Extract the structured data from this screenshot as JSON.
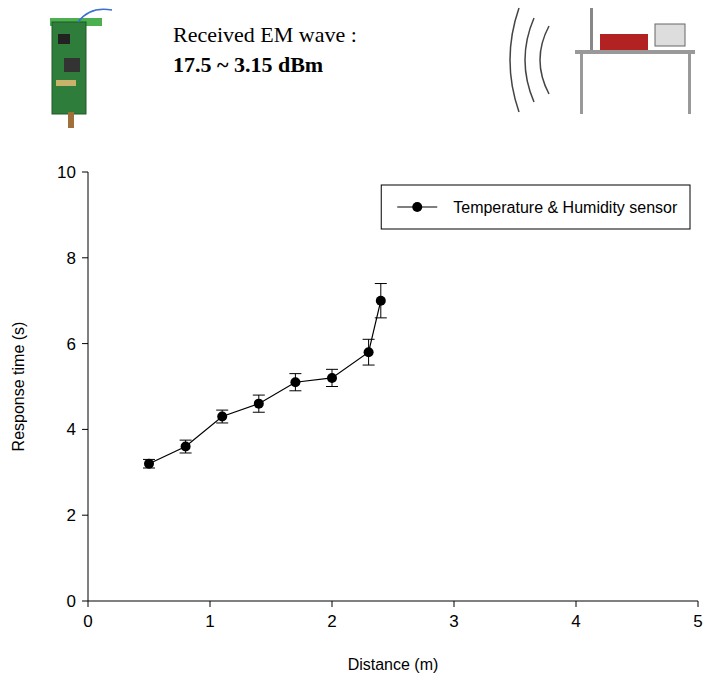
{
  "chart_data": {
    "type": "line",
    "title": "Received EM wave :",
    "subtitle": "17.5 ~ 3.15 dBm",
    "x_label": "Distance (m)",
    "y_label": "Response time (s)",
    "x": [
      0.5,
      0.8,
      1.1,
      1.4,
      1.7,
      2.0,
      2.3,
      2.4
    ],
    "series": [
      {
        "name": "Temperature & Humidity sensor",
        "color": "#000000",
        "marker": "circle",
        "line_style": "solid",
        "values": [
          3.2,
          3.6,
          4.3,
          4.6,
          5.1,
          5.2,
          5.8,
          7.0
        ],
        "errors": [
          0.1,
          0.15,
          0.15,
          0.2,
          0.2,
          0.2,
          0.3,
          0.4
        ]
      }
    ],
    "xlim": [
      0,
      5
    ],
    "xticks": [
      0,
      1,
      2,
      3,
      4,
      5
    ],
    "ylim": [
      0,
      10
    ],
    "yticks": [
      0,
      2,
      4,
      6,
      8,
      10
    ],
    "grid": false,
    "legend": "upper right"
  }
}
